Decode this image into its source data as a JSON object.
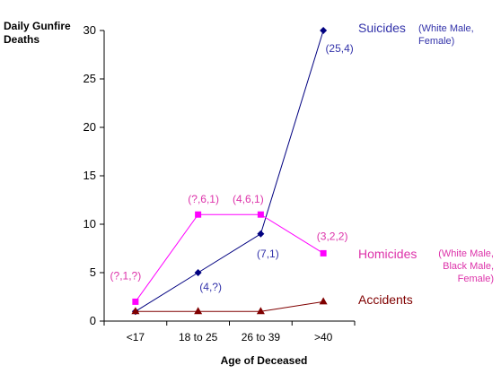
{
  "chart_data": {
    "type": "line",
    "ylabel": "Daily Gunfire\nDeaths",
    "xlabel": "Age of Deceased",
    "categories": [
      "<17",
      "18 to 25",
      "26 to 39",
      ">40"
    ],
    "ylim": [
      0,
      30
    ],
    "yticks": [
      0,
      5,
      10,
      15,
      20,
      25,
      30
    ],
    "grid": false,
    "legend": "none",
    "series": [
      {
        "name": "Suicides",
        "note": "(White Male,\nFemale)",
        "color": "#000080",
        "label_color": "#3333aa",
        "marker": "diamond",
        "values": [
          1,
          5,
          9,
          30
        ],
        "point_labels": [
          "",
          "(4,?)",
          "(7,1)",
          "(25,4)"
        ]
      },
      {
        "name": "Homicides",
        "note": "(White Male,\nBlack Male,\nFemale)",
        "color": "#ff00ff",
        "label_color": "#dd33aa",
        "marker": "square",
        "values": [
          2,
          11,
          11,
          7
        ],
        "point_labels": [
          "(?,1,?)",
          "(?,6,1)",
          "(4,6,1)",
          "(3,2,2)"
        ]
      },
      {
        "name": "Accidents",
        "color": "#800000",
        "label_color": "#800000",
        "marker": "triangle",
        "values": [
          1,
          1,
          1,
          2
        ],
        "point_labels": []
      }
    ]
  }
}
